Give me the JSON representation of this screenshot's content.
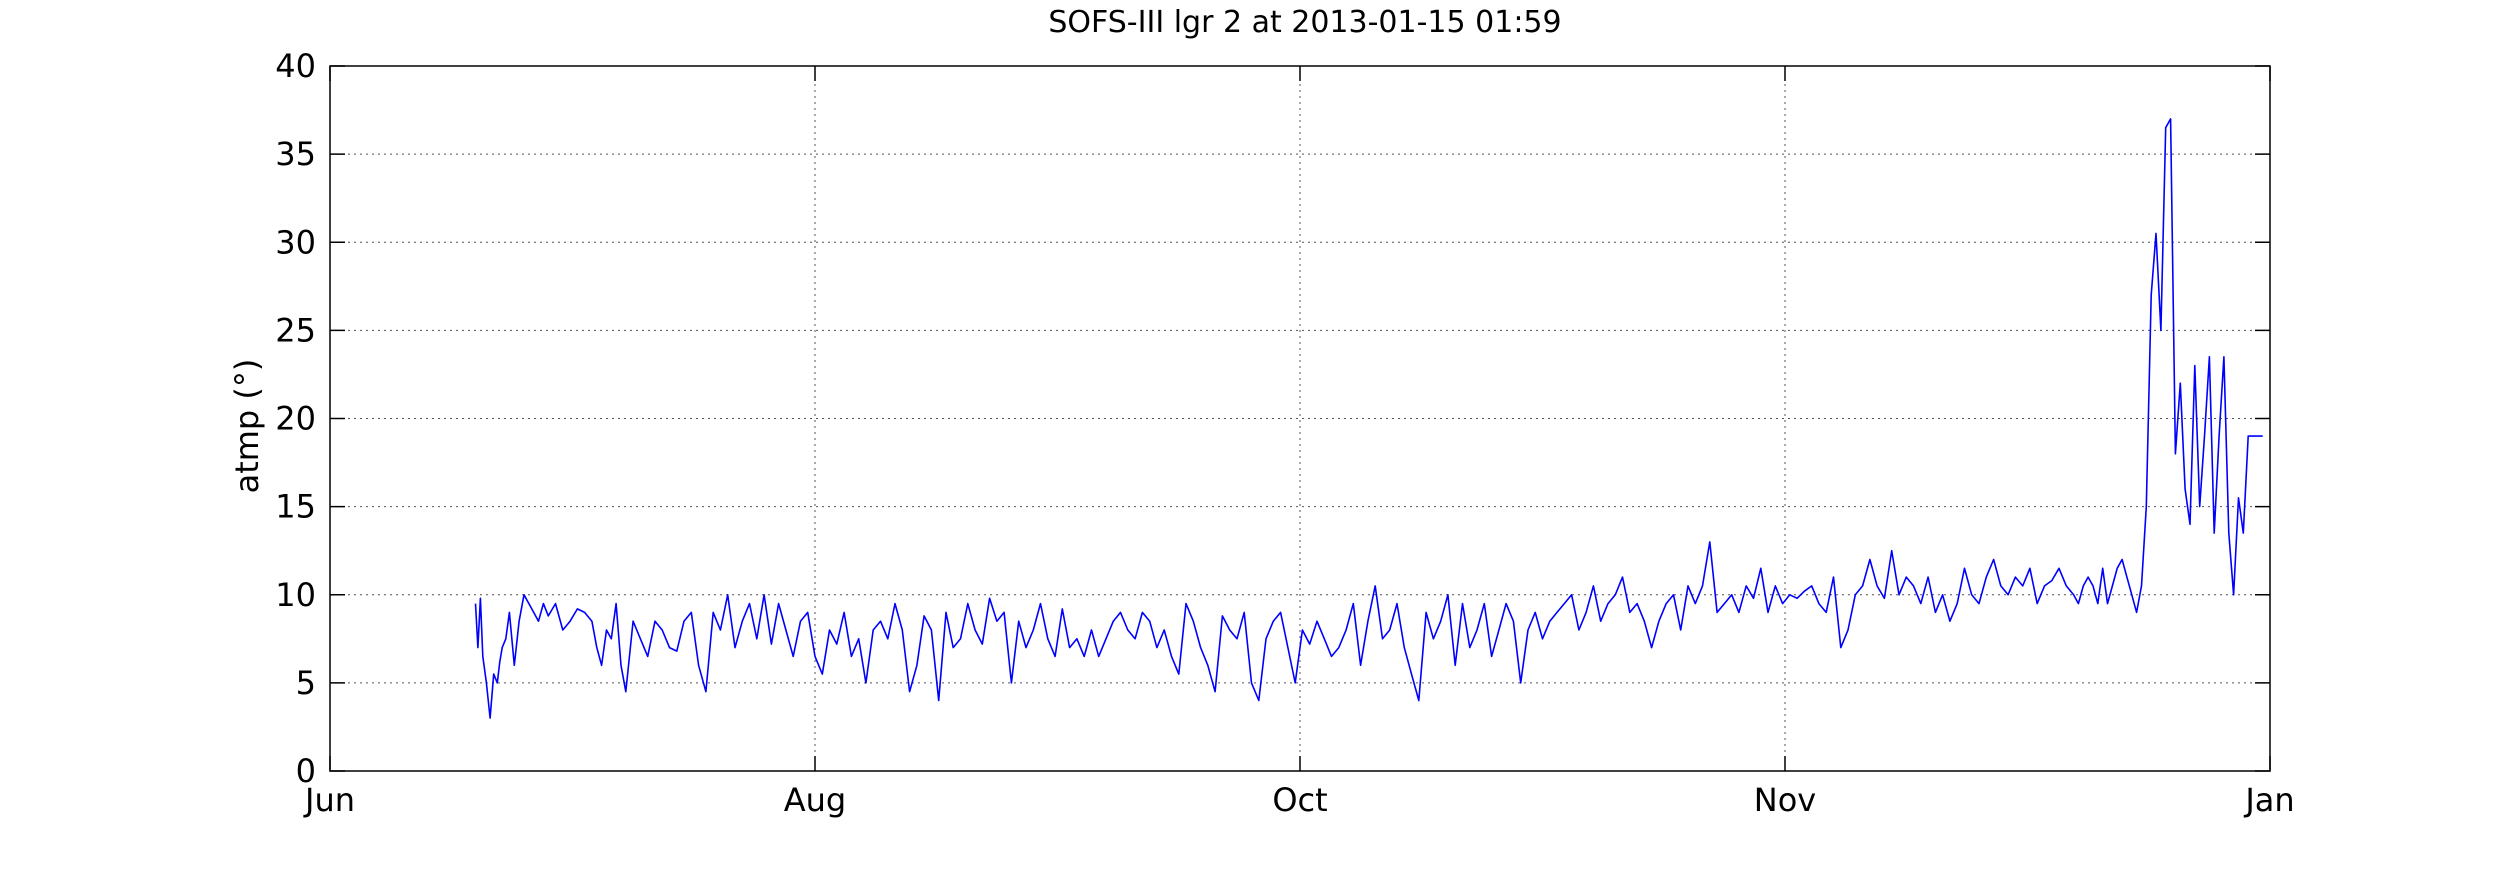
{
  "chart_data": {
    "type": "line",
    "title": "SOFS-III lgr 2 at 2013-01-15 01:59",
    "xlabel": "",
    "ylabel": "atmp (°)",
    "xlim": [
      0,
      8
    ],
    "ylim": [
      0,
      40
    ],
    "grid": true,
    "x_ticks": [
      {
        "value": 0,
        "label": "Jun"
      },
      {
        "value": 2,
        "label": "Aug"
      },
      {
        "value": 4,
        "label": "Oct"
      },
      {
        "value": 6,
        "label": "Nov"
      },
      {
        "value": 8,
        "label": "Jan"
      }
    ],
    "y_ticks": [
      0,
      5,
      10,
      15,
      20,
      25,
      30,
      35,
      40
    ],
    "series": [
      {
        "name": "",
        "color": "#0000ff",
        "x": [
          0.6,
          0.61,
          0.62,
          0.63,
          0.645,
          0.66,
          0.675,
          0.69,
          0.7,
          0.71,
          0.725,
          0.74,
          0.76,
          0.78,
          0.8,
          0.82,
          0.84,
          0.86,
          0.88,
          0.9,
          0.93,
          0.96,
          0.99,
          1.02,
          1.05,
          1.08,
          1.1,
          1.12,
          1.14,
          1.16,
          1.18,
          1.2,
          1.22,
          1.25,
          1.28,
          1.31,
          1.34,
          1.37,
          1.4,
          1.43,
          1.46,
          1.49,
          1.52,
          1.55,
          1.58,
          1.61,
          1.64,
          1.67,
          1.7,
          1.73,
          1.76,
          1.79,
          1.82,
          1.85,
          1.88,
          1.91,
          1.94,
          1.97,
          2.0,
          2.03,
          2.06,
          2.09,
          2.12,
          2.15,
          2.18,
          2.21,
          2.24,
          2.27,
          2.3,
          2.33,
          2.36,
          2.39,
          2.42,
          2.45,
          2.48,
          2.51,
          2.54,
          2.57,
          2.6,
          2.63,
          2.66,
          2.69,
          2.72,
          2.75,
          2.78,
          2.81,
          2.84,
          2.87,
          2.9,
          2.93,
          2.96,
          2.99,
          3.02,
          3.05,
          3.08,
          3.11,
          3.14,
          3.17,
          3.2,
          3.23,
          3.26,
          3.29,
          3.32,
          3.35,
          3.38,
          3.41,
          3.44,
          3.47,
          3.5,
          3.53,
          3.56,
          3.59,
          3.62,
          3.65,
          3.68,
          3.71,
          3.74,
          3.77,
          3.8,
          3.83,
          3.86,
          3.89,
          3.92,
          3.95,
          3.98,
          4.01,
          4.04,
          4.07,
          4.1,
          4.13,
          4.16,
          4.19,
          4.22,
          4.25,
          4.28,
          4.31,
          4.34,
          4.37,
          4.4,
          4.43,
          4.46,
          4.49,
          4.52,
          4.55,
          4.58,
          4.61,
          4.64,
          4.67,
          4.7,
          4.73,
          4.76,
          4.79,
          4.82,
          4.85,
          4.88,
          4.91,
          4.94,
          4.97,
          5.0,
          5.03,
          5.06,
          5.09,
          5.12,
          5.15,
          5.18,
          5.21,
          5.24,
          5.27,
          5.3,
          5.33,
          5.36,
          5.39,
          5.42,
          5.45,
          5.48,
          5.51,
          5.54,
          5.57,
          5.6,
          5.63,
          5.66,
          5.69,
          5.72,
          5.75,
          5.78,
          5.81,
          5.84,
          5.87,
          5.9,
          5.93,
          5.96,
          5.99,
          6.02,
          6.05,
          6.08,
          6.11,
          6.14,
          6.17,
          6.2,
          6.23,
          6.26,
          6.29,
          6.32,
          6.35,
          6.38,
          6.41,
          6.44,
          6.47,
          6.5,
          6.53,
          6.56,
          6.59,
          6.62,
          6.65,
          6.68,
          6.71,
          6.74,
          6.77,
          6.8,
          6.83,
          6.86,
          6.89,
          6.92,
          6.95,
          6.98,
          7.01,
          7.04,
          7.07,
          7.1,
          7.13,
          7.16,
          7.19,
          7.21,
          7.23,
          7.25,
          7.27,
          7.29,
          7.31,
          7.33,
          7.35,
          7.37,
          7.39,
          7.41,
          7.43,
          7.45,
          7.47,
          7.49,
          7.51,
          7.53,
          7.55,
          7.57,
          7.59,
          7.61,
          7.63,
          7.65,
          7.67,
          7.69,
          7.71,
          7.73,
          7.75,
          7.77,
          7.79,
          7.81,
          7.83,
          7.85,
          7.87,
          7.89,
          7.91,
          7.93,
          7.95,
          7.97
        ],
        "y": [
          9.5,
          7.0,
          9.8,
          6.5,
          5.0,
          3.0,
          5.5,
          5.0,
          6.2,
          7.0,
          7.5,
          9.0,
          6.0,
          8.5,
          10.0,
          9.5,
          9.0,
          8.5,
          9.5,
          8.8,
          9.5,
          8.0,
          8.5,
          9.2,
          9.0,
          8.5,
          7.0,
          6.0,
          8.0,
          7.5,
          9.5,
          6.0,
          4.5,
          8.5,
          7.5,
          6.5,
          8.5,
          8.0,
          7.0,
          6.8,
          8.5,
          9.0,
          6.0,
          4.5,
          9.0,
          8.0,
          10.0,
          7.0,
          8.5,
          9.5,
          7.5,
          10.0,
          7.2,
          9.5,
          8.0,
          6.5,
          8.5,
          9.0,
          6.5,
          5.5,
          8.0,
          7.2,
          9.0,
          6.5,
          7.5,
          5.0,
          8.0,
          8.5,
          7.5,
          9.5,
          8.0,
          4.5,
          6.0,
          8.8,
          8.0,
          4.0,
          9.0,
          7.0,
          7.5,
          9.5,
          8.0,
          7.2,
          9.8,
          8.5,
          9.0,
          5.0,
          8.5,
          7.0,
          8.0,
          9.5,
          7.5,
          6.5,
          9.2,
          7.0,
          7.5,
          6.5,
          8.0,
          6.5,
          7.5,
          8.5,
          9.0,
          8.0,
          7.5,
          9.0,
          8.5,
          7.0,
          8.0,
          6.5,
          5.5,
          9.5,
          8.5,
          7.0,
          6.0,
          4.5,
          8.8,
          8.0,
          7.5,
          9.0,
          5.0,
          4.0,
          7.5,
          8.5,
          9.0,
          7.0,
          5.0,
          8.0,
          7.2,
          8.5,
          7.5,
          6.5,
          7.0,
          8.0,
          9.5,
          6.0,
          8.5,
          10.5,
          7.5,
          8.0,
          9.5,
          7.0,
          5.5,
          4.0,
          9.0,
          7.5,
          8.5,
          10.0,
          6.0,
          9.5,
          7.0,
          8.0,
          9.5,
          6.5,
          8.0,
          9.5,
          8.5,
          5.0,
          8.0,
          9.0,
          7.5,
          8.5,
          9.0,
          9.5,
          10.0,
          8.0,
          9.0,
          10.5,
          8.5,
          9.5,
          10.0,
          11.0,
          9.0,
          9.5,
          8.5,
          7.0,
          8.5,
          9.5,
          10.0,
          8.0,
          10.5,
          9.5,
          10.5,
          13.0,
          9.0,
          9.5,
          10.0,
          9.0,
          10.5,
          9.8,
          11.5,
          9.0,
          10.5,
          9.5,
          10.0,
          9.8,
          10.2,
          10.5,
          9.5,
          9.0,
          11.0,
          7.0,
          8.0,
          10.0,
          10.5,
          12.0,
          10.5,
          9.8,
          12.5,
          10.0,
          11.0,
          10.5,
          9.5,
          11.0,
          9.0,
          10.0,
          8.5,
          9.5,
          11.5,
          10.0,
          9.5,
          11.0,
          12.0,
          10.5,
          10.0,
          11.0,
          10.5,
          11.5,
          9.5,
          10.5,
          10.8,
          11.5,
          10.5,
          10.0,
          9.5,
          10.5,
          11.0,
          10.5,
          9.5,
          11.5,
          9.5,
          10.5,
          11.5,
          12.0,
          11.0,
          10.0,
          9.0,
          10.5,
          15.0,
          27.0,
          30.5,
          25.0,
          36.5,
          37.0,
          18.0,
          22.0,
          16.0,
          14.0,
          23.0,
          15.0,
          19.0,
          23.5,
          13.5,
          19.0,
          23.5,
          13.5,
          10.0,
          15.5,
          13.5,
          19.0,
          19.0,
          19.0,
          19.0
        ]
      }
    ]
  }
}
